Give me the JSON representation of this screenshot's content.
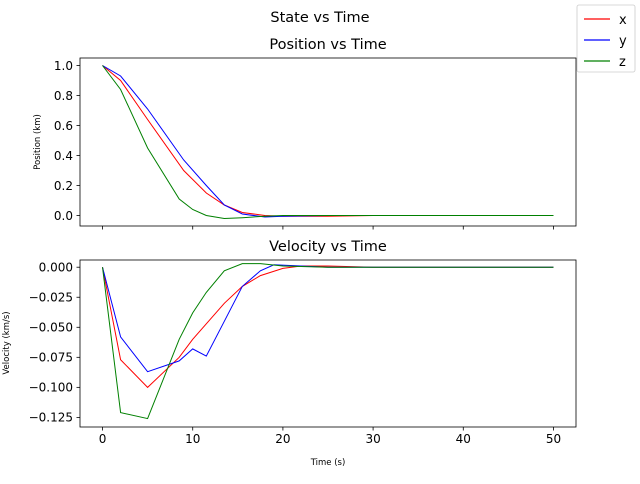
{
  "figure": {
    "suptitle": "State vs Time",
    "legend": {
      "placement": "top-right",
      "entries": [
        {
          "label": "x",
          "color": "#ff0000"
        },
        {
          "label": "y",
          "color": "#0000ff"
        },
        {
          "label": "z",
          "color": "#008000"
        }
      ]
    }
  },
  "chart_data": [
    {
      "type": "line",
      "title": "Position vs Time",
      "xlabel": "",
      "ylabel": "Position (km)",
      "xlim": [
        -2.5,
        52.5
      ],
      "ylim": [
        -0.07,
        1.05
      ],
      "xticks": [
        0,
        10,
        20,
        30,
        40,
        50
      ],
      "xtick_labels_shown": false,
      "yticks": [
        0.0,
        0.2,
        0.4,
        0.6,
        0.8,
        1.0
      ],
      "ytick_labels": [
        "0.0",
        "0.2",
        "0.4",
        "0.6",
        "0.8",
        "1.0"
      ],
      "grid": false,
      "series": [
        {
          "name": "x",
          "color": "#ff0000",
          "x": [
            0,
            2,
            5,
            9,
            11.5,
            13.5,
            15.5,
            18,
            20,
            25,
            30,
            40,
            50
          ],
          "y": [
            1.0,
            0.9,
            0.64,
            0.3,
            0.15,
            0.07,
            0.02,
            0.0,
            -0.005,
            -0.005,
            0.0,
            0.0,
            0.0
          ]
        },
        {
          "name": "y",
          "color": "#0000ff",
          "x": [
            0,
            2,
            5,
            9,
            11.5,
            13.5,
            15.5,
            18,
            20,
            25,
            30,
            40,
            50
          ],
          "y": [
            1.0,
            0.93,
            0.71,
            0.37,
            0.2,
            0.07,
            0.01,
            -0.01,
            -0.005,
            0.0,
            0.0,
            0.0,
            0.0
          ]
        },
        {
          "name": "z",
          "color": "#008000",
          "x": [
            0,
            2,
            5,
            8.5,
            10,
            11.5,
            13.5,
            15.5,
            18,
            20,
            25,
            30,
            40,
            50
          ],
          "y": [
            1.0,
            0.84,
            0.45,
            0.11,
            0.04,
            0.0,
            -0.02,
            -0.015,
            -0.005,
            0.0,
            0.0,
            0.0,
            0.0,
            0.0
          ]
        }
      ]
    },
    {
      "type": "line",
      "title": "Velocity vs Time",
      "xlabel": "Time (s)",
      "ylabel": "Velocity (km/s)",
      "xlim": [
        -2.5,
        52.5
      ],
      "ylim": [
        -0.133,
        0.006
      ],
      "xticks": [
        0,
        10,
        20,
        30,
        40,
        50
      ],
      "xtick_labels": [
        "0",
        "10",
        "20",
        "30",
        "40",
        "50"
      ],
      "yticks": [
        0.0,
        -0.025,
        -0.05,
        -0.075,
        -0.1,
        -0.125
      ],
      "ytick_labels": [
        "0.000",
        "−0.025",
        "−0.050",
        "−0.075",
        "−0.100",
        "−0.125"
      ],
      "grid": false,
      "series": [
        {
          "name": "x",
          "color": "#ff0000",
          "x": [
            0,
            2,
            5,
            8.5,
            10,
            13.5,
            15.5,
            17.5,
            20,
            22,
            25,
            30,
            40,
            50
          ],
          "y": [
            0.0,
            -0.077,
            -0.1,
            -0.075,
            -0.06,
            -0.03,
            -0.016,
            -0.007,
            -0.001,
            0.001,
            0.001,
            0.0,
            0.0,
            0.0
          ]
        },
        {
          "name": "y",
          "color": "#0000ff",
          "x": [
            0,
            2,
            5,
            8.5,
            10,
            11.5,
            13.5,
            15.5,
            17.5,
            19,
            22,
            25,
            30,
            40,
            50
          ],
          "y": [
            0.0,
            -0.058,
            -0.087,
            -0.078,
            -0.068,
            -0.074,
            -0.045,
            -0.016,
            -0.003,
            0.002,
            0.001,
            0.0,
            0.0,
            0.0,
            0.0
          ]
        },
        {
          "name": "z",
          "color": "#008000",
          "x": [
            0,
            2,
            5,
            8.5,
            10,
            11.5,
            13.5,
            15.5,
            17.5,
            20,
            25,
            30,
            40,
            50
          ],
          "y": [
            0.0,
            -0.121,
            -0.126,
            -0.06,
            -0.038,
            -0.021,
            -0.003,
            0.003,
            0.003,
            0.001,
            0.0,
            0.0,
            0.0,
            0.0
          ]
        }
      ]
    }
  ]
}
